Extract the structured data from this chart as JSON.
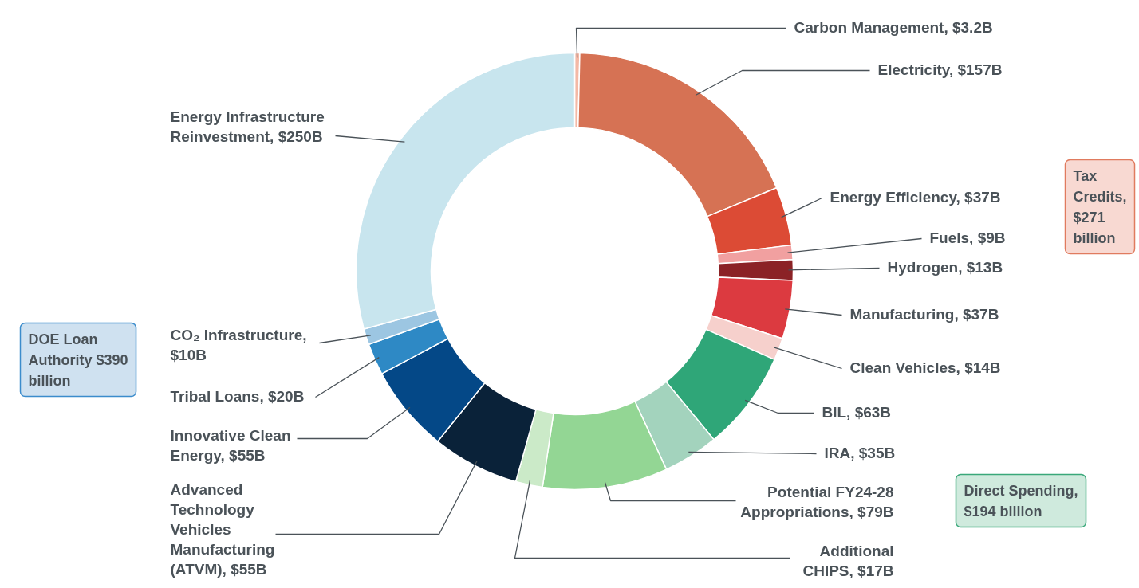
{
  "chart_data": {
    "type": "donut",
    "categories": [
      "Carbon Management, $3.2B",
      "Electricity, $157B",
      "Energy Efficiency, $37B",
      "Fuels, $9B",
      "Hydrogen, $13B",
      "Manufacturing, $37B",
      "Clean Vehicles, $14B",
      "BIL, $63B",
      "IRA, $35B",
      "Potential FY24-28 Appropriations, $79B",
      "Additional CHIPS, $17B",
      "Advanced Technology Vehicles Manufacturing (ATVM), $55B",
      "Innovative Clean Energy, $55B",
      "Tribal Loans, $20B",
      "CO₂ Infrastructure, $10B",
      "Energy Infrastructure Reinvestment, $250B"
    ],
    "values": [
      3.2,
      157,
      37,
      9,
      13,
      37,
      14,
      63,
      35,
      79,
      17,
      55,
      55,
      20,
      10,
      250
    ],
    "colors": [
      "#f4b9a6",
      "#d67254",
      "#dc4b35",
      "#f1a0a0",
      "#8b2226",
      "#dc3a40",
      "#f6d0cc",
      "#2fa678",
      "#a3d3bd",
      "#93d694",
      "#cbeac8",
      "#0a2239",
      "#044887",
      "#2e89c5",
      "#9cc6e2",
      "#c8e5ee"
    ],
    "annotations": [
      "Tax Credits, $271 billion",
      "Direct Spending, $194 billion",
      "DOE Loan Authority $390 billion"
    ]
  }
}
